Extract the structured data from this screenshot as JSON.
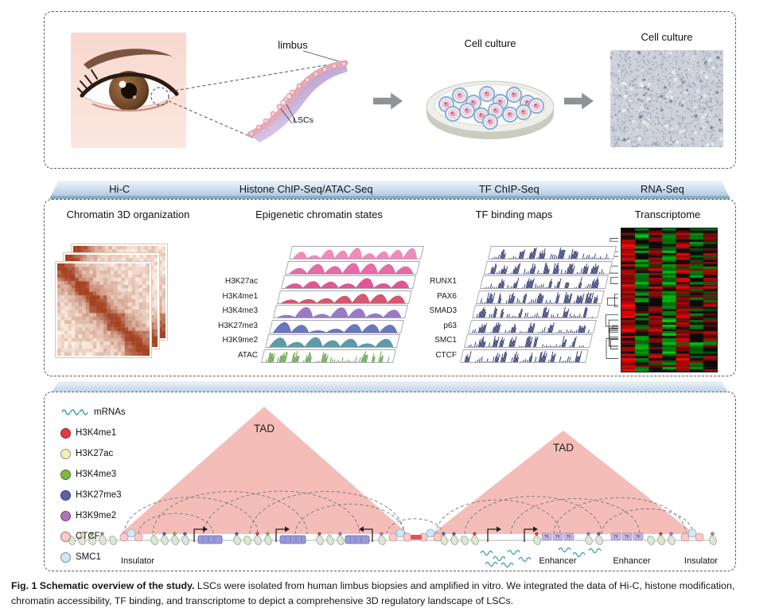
{
  "top_panel": {
    "limbus_label": "limbus",
    "lscs_label": "LSCs",
    "culture_label_dish": "Cell culture",
    "culture_label_micro": "Cell culture"
  },
  "pipeline_headers": [
    "Hi-C",
    "Histone ChIP-Seq/ATAC-Seq",
    "TF ChIP-Seq",
    "RNA-Seq"
  ],
  "middle_panel": {
    "hic_title": "Chromatin 3D organization",
    "epigenetic_title": "Epigenetic chromatin states",
    "tf_title": "TF binding maps",
    "rna_title": "Transcriptome",
    "epigenetic_tracks": [
      "H3K27ac",
      "H3K4me1",
      "H3K4me3",
      "H3K27me3",
      "H3K9me2",
      "ATAC"
    ],
    "tf_tracks": [
      "RUNX1",
      "PAX6",
      "SMAD3",
      "p63",
      "SMC1",
      "CTCF"
    ]
  },
  "bottom_panel": {
    "legend": [
      {
        "label": "mRNAs",
        "swatch": "wave",
        "color": "#2f9e9b"
      },
      {
        "label": "H3K4me1",
        "swatch": "circle",
        "color": "#e23b3f"
      },
      {
        "label": "H3K27ac",
        "swatch": "circle",
        "color": "#f7edbb"
      },
      {
        "label": "H3K4me3",
        "swatch": "circle",
        "color": "#7cb944"
      },
      {
        "label": "H3K27me3",
        "swatch": "circle",
        "color": "#5a61ad"
      },
      {
        "label": "H3K9me2",
        "swatch": "circle",
        "color": "#b273b6"
      },
      {
        "label": "CTCF",
        "swatch": "circle",
        "color": "#f9caca"
      },
      {
        "label": "SMC1",
        "swatch": "circle",
        "color": "#cfe8f5"
      }
    ],
    "tad_left": "TAD",
    "tad_right": "TAD",
    "tf_tag": "TF",
    "region_labels": [
      "Insulator",
      "Enhancer",
      "Enhancer",
      "Insulator"
    ]
  },
  "caption": {
    "title": "Fig. 1 Schematic overview of the study.",
    "body": " LSCs were isolated from human limbus biopsies and amplified in vitro. We integrated the data of Hi-C, histone modification, chromatin accessibility, TF binding, and transcriptome to depict a comprehensive 3D regulatory landscape of LSCs."
  },
  "colors": {
    "tad_fill": "#f5bdb8",
    "ribbon_light": "#eff6fb",
    "ribbon_mid": "#c9dcec",
    "ribbon_dark": "#a3bfd9",
    "mrna_wave": "#2f9e9b",
    "ctcf_fill": "#f9caca",
    "smc1_fill": "#cfe8f5",
    "tf_signal": "#28336e",
    "atac_signal": "#5a9e3a",
    "hic_high": "#b24428",
    "rna_up": "#cc0000",
    "rna_down": "#0f9d0f",
    "epigenetic_signal": [
      "#ec7fb4",
      "#e25b9d",
      "#e0438a",
      "#cf4660",
      "#8e6cc0",
      "#5a68b5",
      "#4e8fa0",
      "#5a9e3a"
    ]
  }
}
